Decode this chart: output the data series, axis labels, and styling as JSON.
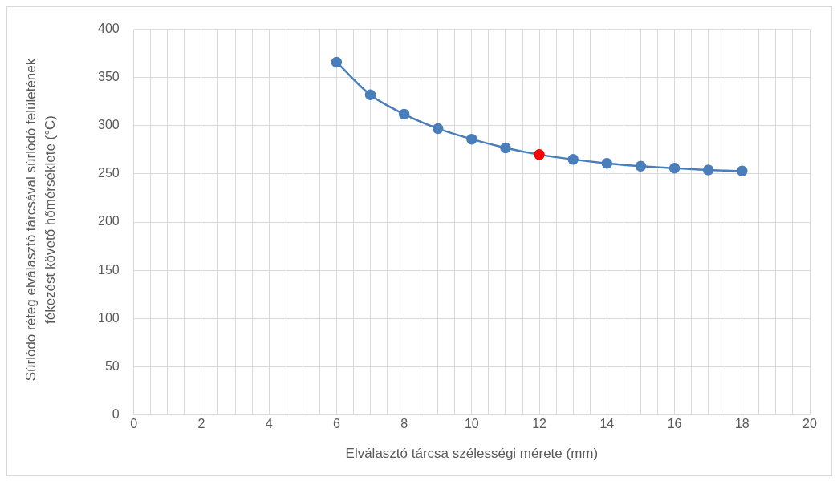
{
  "chart_data": {
    "type": "line",
    "xlabel": "Elválasztó tárcsa szélességi mérete (mm)",
    "ylabel": "Súrlódó réteg elválasztó tárcsával súrlódó felületének fékezést követő hőmérséklete (°C)",
    "x": [
      6,
      7,
      8,
      9,
      10,
      11,
      12,
      13,
      14,
      15,
      16,
      17,
      18
    ],
    "series": [
      {
        "color": "#4a7ebb",
        "colors": [
          "#4a7ebb",
          "#4a7ebb",
          "#4a7ebb",
          "#4a7ebb",
          "#4a7ebb",
          "#4a7ebb",
          "#ff0000",
          "#4a7ebb",
          "#4a7ebb",
          "#4a7ebb",
          "#4a7ebb",
          "#4a7ebb",
          "#4a7ebb"
        ],
        "values": [
          366,
          332,
          312,
          297,
          286,
          277,
          270,
          265,
          261,
          258,
          256,
          254,
          253
        ]
      }
    ],
    "xlim": [
      0,
      20
    ],
    "xticks": [
      0,
      {
        "value": 0.5,
        "label": null
      },
      {
        "value": 1,
        "label": null
      },
      {
        "value": 1.5,
        "label": null
      },
      2,
      {
        "value": 2.5,
        "label": null
      },
      {
        "value": 3,
        "label": null
      },
      {
        "value": 3.5,
        "label": null
      },
      4,
      {
        "value": 4.5,
        "label": null
      },
      {
        "value": 5,
        "label": null
      },
      {
        "value": 5.5,
        "label": null
      },
      6,
      {
        "value": 6.5,
        "label": null
      },
      {
        "value": 7,
        "label": null
      },
      {
        "value": 7.5,
        "label": null
      },
      8,
      {
        "value": 8.5,
        "label": null
      },
      {
        "value": 9,
        "label": null
      },
      {
        "value": 9.5,
        "label": null
      },
      10,
      {
        "value": 10.5,
        "label": null
      },
      {
        "value": 11,
        "label": null
      },
      {
        "value": 11.5,
        "label": null
      },
      12,
      {
        "value": 12.5,
        "label": null
      },
      {
        "value": 13,
        "label": null
      },
      {
        "value": 13.5,
        "label": null
      },
      14,
      {
        "value": 14.5,
        "label": null
      },
      {
        "value": 15,
        "label": null
      },
      {
        "value": 15.5,
        "label": null
      },
      16,
      {
        "value": 16.5,
        "label": null
      },
      {
        "value": 17,
        "label": null
      },
      {
        "value": 17.5,
        "label": null
      },
      18,
      {
        "value": 18.5,
        "label": null
      },
      {
        "value": 19,
        "label": null
      },
      {
        "value": 19.5,
        "label": null
      },
      20
    ],
    "ylim": [
      0,
      400
    ],
    "yticks": [
      0,
      50,
      100,
      150,
      200,
      250,
      300,
      350,
      400
    ],
    "grid": true,
    "legend": false,
    "marker": "circle",
    "line_style": "solid"
  }
}
